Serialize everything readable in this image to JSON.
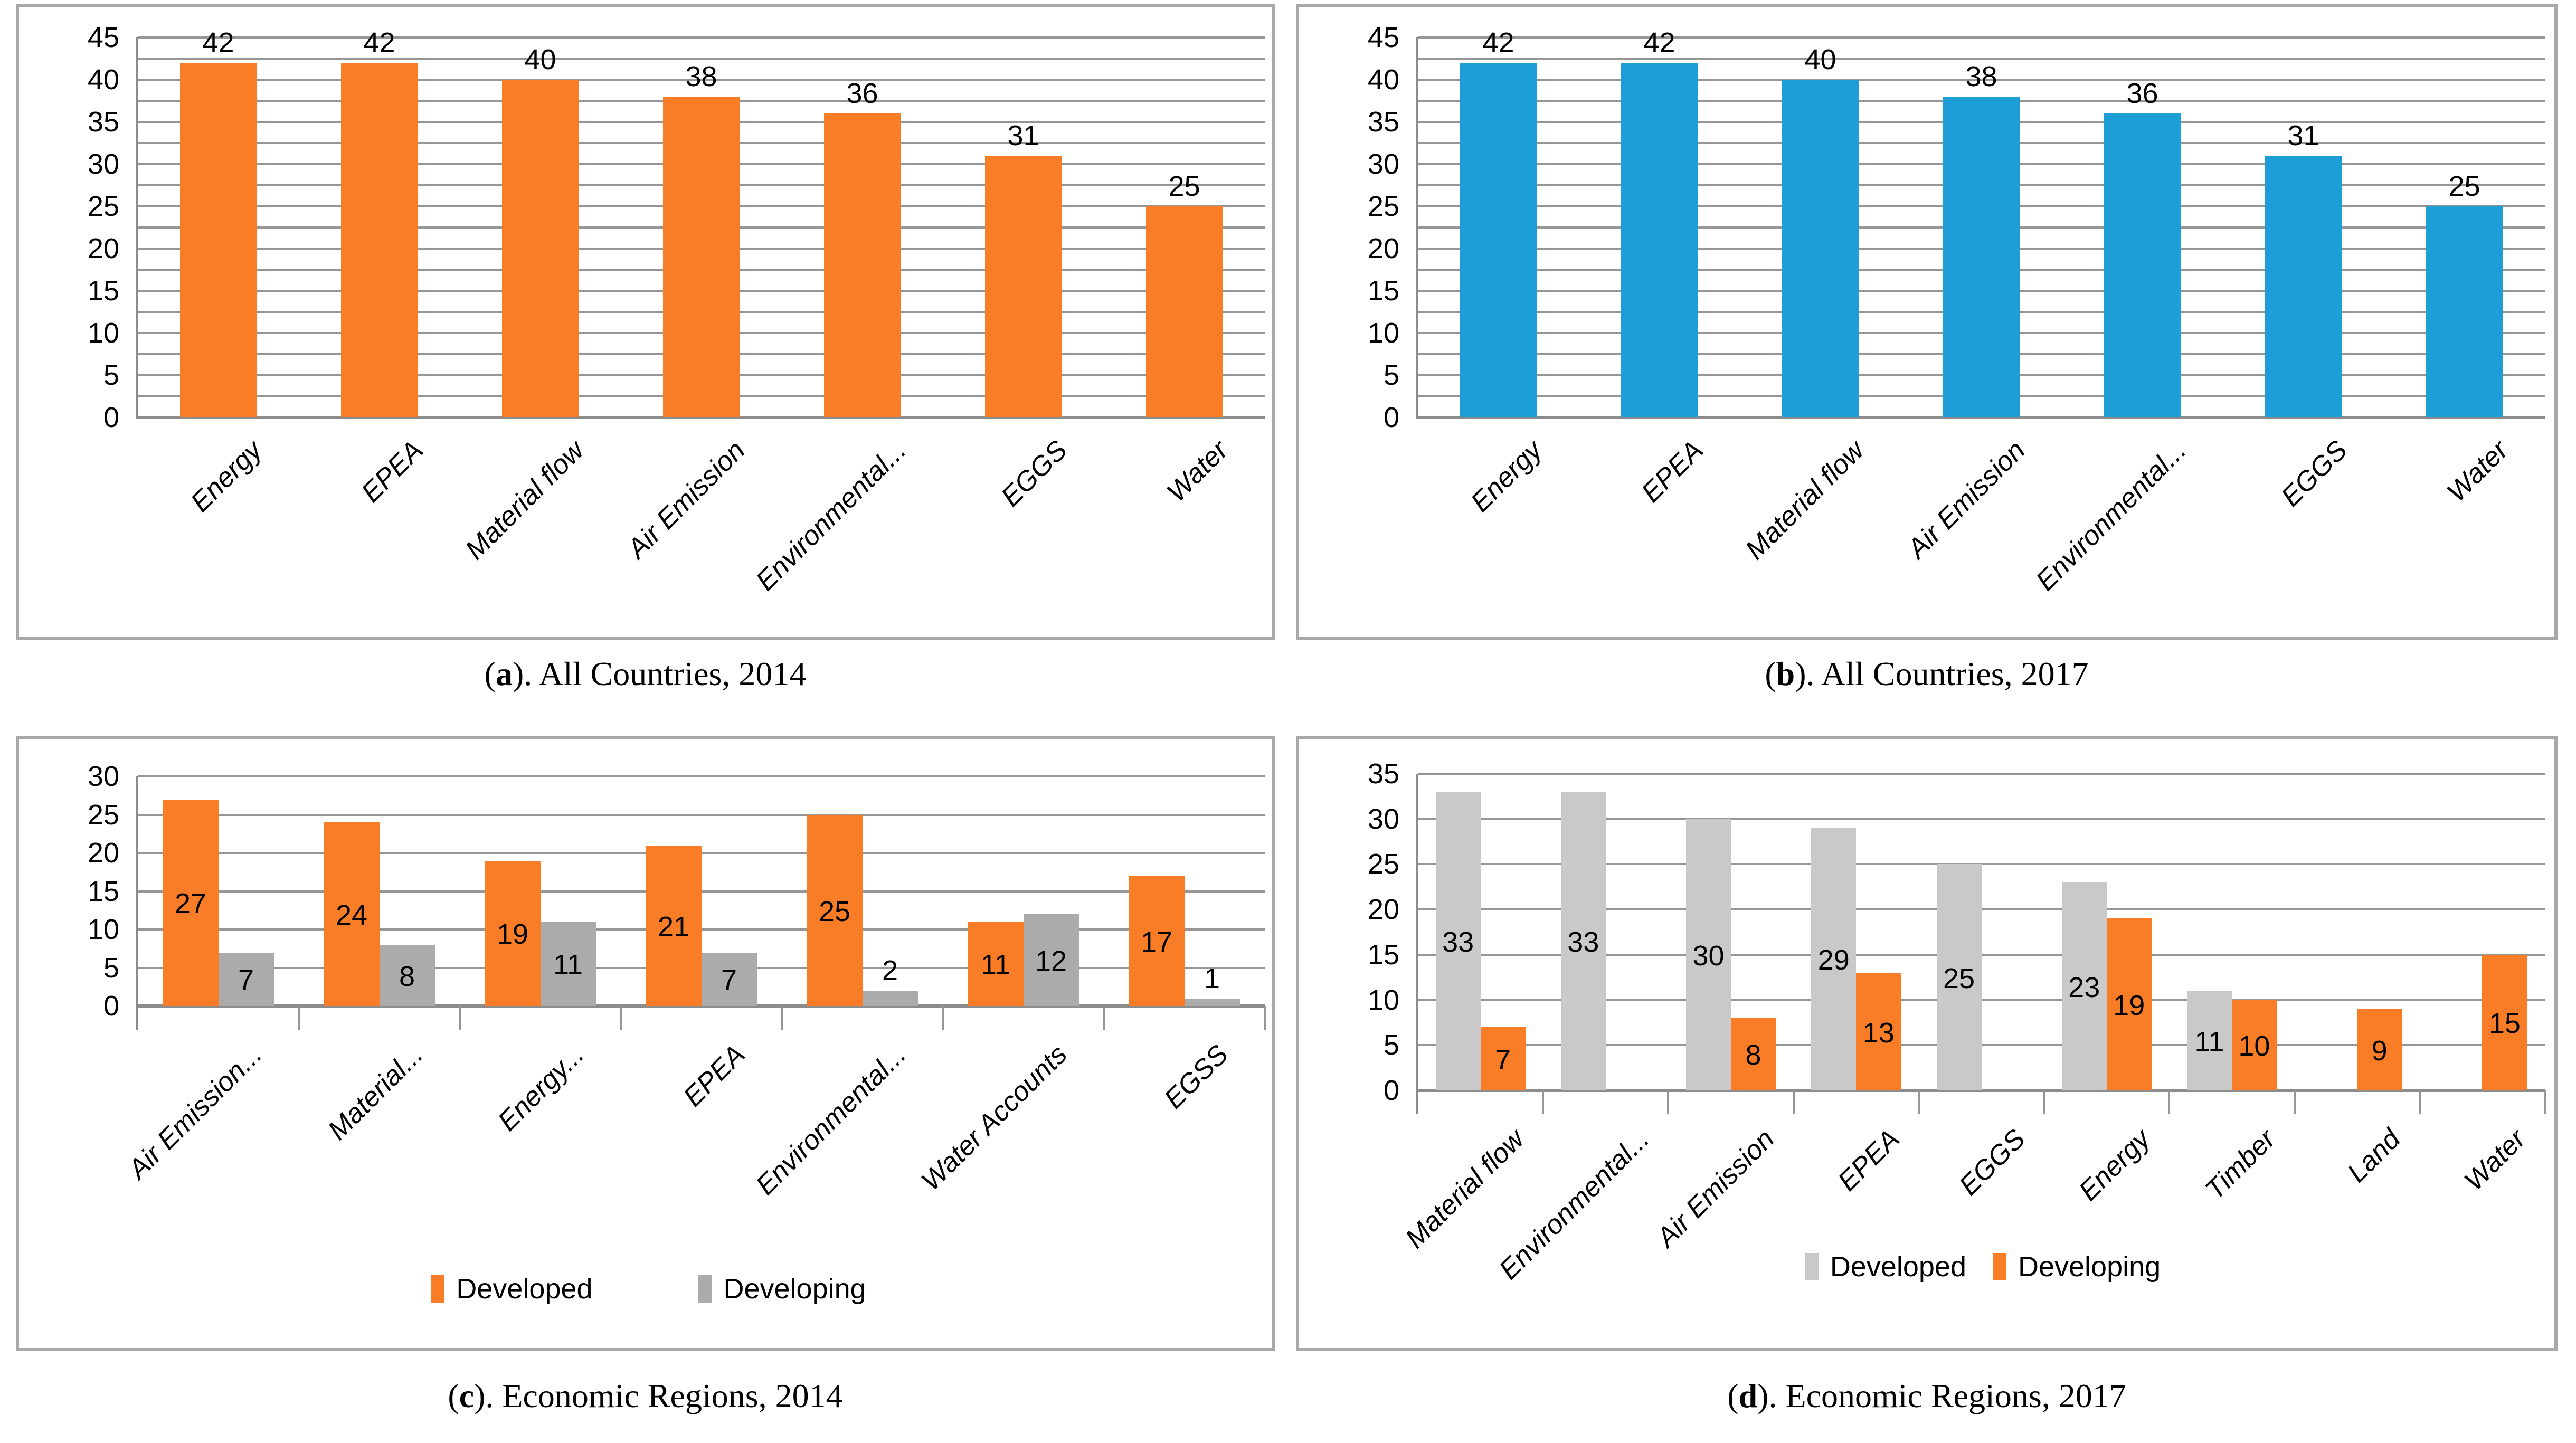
{
  "colors": {
    "orange": "#F97D27",
    "blue": "#1E9ED6",
    "gray_2014": "#ABABAB",
    "gray_2017": "#C9C9C9",
    "gridline": "#969696",
    "axis": "#8C8C8C",
    "border": "#A8A8A8"
  },
  "chart_data": [
    {
      "id": "a",
      "type": "bar",
      "title": "All Countries, 2014",
      "caption": {
        "pre": "(",
        "letter": "a",
        "rest": "). All Countries, 2014"
      },
      "categories": [
        "Energy",
        "EPEA",
        "Material flow",
        "Air Emission",
        "Environmental...",
        "EGGS",
        "Water"
      ],
      "series": [
        {
          "name": "All Countries 2014",
          "color_key": "orange",
          "values": [
            42,
            42,
            40,
            38,
            36,
            31,
            25
          ]
        }
      ],
      "ylim": [
        0,
        45
      ],
      "ytick_step": 5,
      "grid_step": 2.5,
      "grid": true,
      "legend": null,
      "data_label_position": "outside_end"
    },
    {
      "id": "b",
      "type": "bar",
      "title": "All Countries, 2017",
      "caption": {
        "pre": "(",
        "letter": "b",
        "rest": "). All Countries, 2017"
      },
      "categories": [
        "Energy",
        "EPEA",
        "Material flow",
        "Air Emission",
        "Environmental...",
        "EGGS",
        "Water"
      ],
      "series": [
        {
          "name": "All Countries 2017",
          "color_key": "blue",
          "values": [
            42,
            42,
            40,
            38,
            36,
            31,
            25
          ]
        }
      ],
      "ylim": [
        0,
        45
      ],
      "ytick_step": 5,
      "grid_step": 2.5,
      "grid": true,
      "legend": null,
      "data_label_position": "outside_end"
    },
    {
      "id": "c",
      "type": "grouped_bar",
      "title": "Economic Regions, 2014",
      "caption": {
        "pre": "(",
        "letter": "c",
        "rest": "). Economic Regions, 2014"
      },
      "categories": [
        "Air Emission...",
        "Material...",
        "Energy...",
        "EPEA",
        "Environmental...",
        "Water Accounts",
        "EGSS"
      ],
      "series": [
        {
          "name": "Developed",
          "color_key": "orange",
          "values": [
            27,
            24,
            19,
            21,
            25,
            11,
            17
          ]
        },
        {
          "name": "Developing",
          "color_key": "gray_2014",
          "values": [
            7,
            8,
            11,
            7,
            2,
            12,
            1
          ]
        }
      ],
      "ylim": [
        0,
        30
      ],
      "ytick_step": 5,
      "grid_step": 5,
      "grid": true,
      "legend": {
        "position": "bottom-center",
        "entries": [
          "Developed",
          "Developing"
        ]
      },
      "data_label_position": "center"
    },
    {
      "id": "d",
      "type": "grouped_bar",
      "title": "Economic Regions, 2017",
      "caption": {
        "pre": "(",
        "letter": "d",
        "rest": "). Economic Regions, 2017"
      },
      "categories": [
        "Material flow",
        "Environmental...",
        "Air Emission",
        "EPEA",
        "EGGS",
        "Energy",
        "Timber",
        "Land",
        "Water"
      ],
      "series": [
        {
          "name": "Developed",
          "color_key": "gray_2017",
          "values": [
            33,
            33,
            30,
            29,
            25,
            23,
            11,
            null,
            null
          ]
        },
        {
          "name": "Developing",
          "color_key": "orange",
          "values": [
            7,
            null,
            8,
            13,
            null,
            19,
            10,
            9,
            15
          ]
        }
      ],
      "ylim": [
        0,
        35
      ],
      "ytick_step": 5,
      "grid_step": 5,
      "grid": true,
      "legend": {
        "position": "bottom-right",
        "entries": [
          "Developed",
          "Developing"
        ]
      },
      "data_label_position": "center"
    }
  ]
}
